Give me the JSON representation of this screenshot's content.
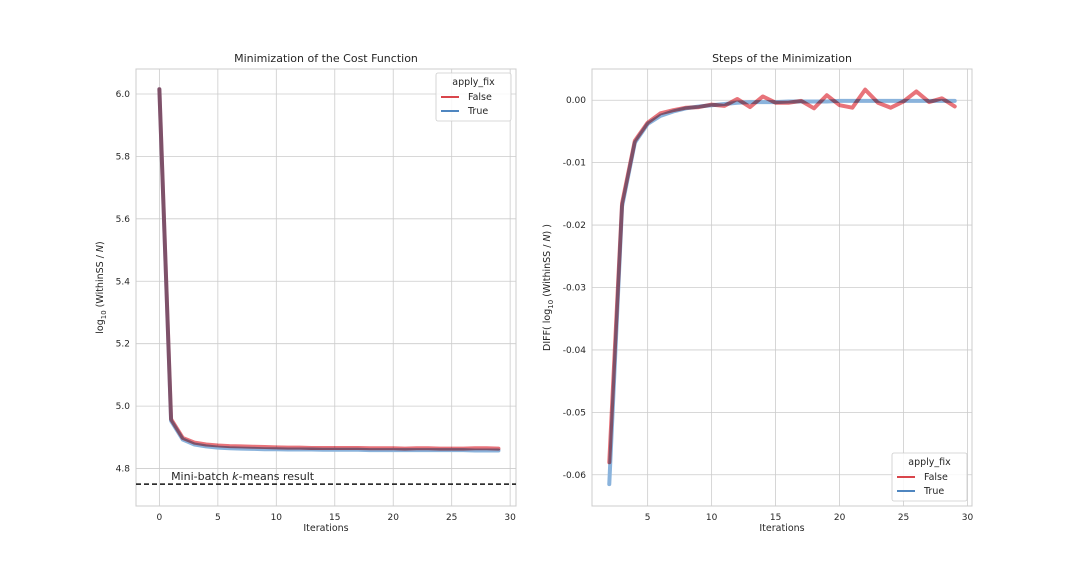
{
  "chart_data": [
    {
      "type": "line",
      "title": "Minimization of the Cost Function",
      "xlabel": "Iterations",
      "ylabel_parts": {
        "pre": "log",
        "sub": "10",
        "post": " (WithinSS / ",
        "italic": "N",
        "end": ")"
      },
      "xlim": [
        -2,
        30.5
      ],
      "ylim": [
        4.68,
        6.08
      ],
      "xticks": [
        0,
        5,
        10,
        15,
        20,
        25,
        30
      ],
      "yticks": [
        4.8,
        5.0,
        5.2,
        5.4,
        5.6,
        5.8,
        6.0
      ],
      "ytick_labels": [
        "4.8",
        "5.0",
        "5.2",
        "5.4",
        "5.6",
        "5.8",
        "6.0"
      ],
      "grid": true,
      "legend": {
        "title": "apply_fix",
        "position": "top-right"
      },
      "hline": {
        "y": 4.75,
        "style": "dashed"
      },
      "annotation": {
        "text_pre": "Mini-batch ",
        "text_italic": "k",
        "text_post": "-means result"
      },
      "x": [
        0,
        1,
        2,
        3,
        4,
        5,
        6,
        7,
        8,
        9,
        10,
        11,
        12,
        13,
        14,
        15,
        16,
        17,
        18,
        19,
        20,
        21,
        22,
        23,
        24,
        25,
        26,
        27,
        28,
        29
      ],
      "series": [
        {
          "name": "False",
          "color": "#e8737a",
          "values": [
            6.015,
            4.958,
            4.898,
            4.883,
            4.877,
            4.874,
            4.872,
            4.871,
            4.87,
            4.869,
            4.868,
            4.867,
            4.867,
            4.866,
            4.866,
            4.866,
            4.866,
            4.866,
            4.865,
            4.865,
            4.865,
            4.864,
            4.865,
            4.865,
            4.864,
            4.864,
            4.864,
            4.865,
            4.865,
            4.864
          ]
        },
        {
          "name": "True",
          "color": "#8ab3dc",
          "values": [
            6.015,
            4.953,
            4.893,
            4.877,
            4.871,
            4.867,
            4.865,
            4.864,
            4.863,
            4.862,
            4.862,
            4.861,
            4.861,
            4.861,
            4.86,
            4.86,
            4.86,
            4.86,
            4.859,
            4.859,
            4.859,
            4.859,
            4.859,
            4.859,
            4.859,
            4.859,
            4.859,
            4.858,
            4.858,
            4.858
          ]
        }
      ]
    },
    {
      "type": "line",
      "title": "Steps of the Minimization",
      "xlabel": "Iterations",
      "ylabel_parts": {
        "pre": "DIFF( log",
        "sub": "10",
        "post": " (WithinSS / ",
        "italic": "N",
        "end": ") )"
      },
      "xlim": [
        0.65,
        30.35
      ],
      "ylim": [
        -0.065,
        0.005
      ],
      "xticks": [
        5,
        10,
        15,
        20,
        25,
        30
      ],
      "yticks": [
        -0.06,
        -0.05,
        -0.04,
        -0.03,
        -0.02,
        -0.01,
        0.0
      ],
      "ytick_labels": [
        "-0.06",
        "-0.05",
        "-0.04",
        "-0.03",
        "-0.02",
        "-0.01",
        "0.00"
      ],
      "grid": true,
      "legend": {
        "title": "apply_fix",
        "position": "bottom-right"
      },
      "x": [
        2,
        3,
        4,
        5,
        6,
        7,
        8,
        9,
        10,
        11,
        12,
        13,
        14,
        15,
        16,
        17,
        18,
        19,
        20,
        21,
        22,
        23,
        24,
        25,
        26,
        27,
        28,
        29
      ],
      "series": [
        {
          "name": "False",
          "color": "#e8737a",
          "values": [
            -0.058,
            -0.0165,
            -0.0065,
            -0.0036,
            -0.0021,
            -0.0016,
            -0.0012,
            -0.0011,
            -0.0007,
            -0.0009,
            0.0002,
            -0.0011,
            0.0006,
            -0.0004,
            -0.0004,
            -0.0001,
            -0.0013,
            0.0008,
            -0.0008,
            -0.0012,
            0.0017,
            -0.0004,
            -0.0012,
            -0.0002,
            0.0014,
            -0.0003,
            0.0003,
            -0.001
          ]
        },
        {
          "name": "True",
          "color": "#8ab3dc",
          "values": [
            -0.0615,
            -0.017,
            -0.0068,
            -0.0038,
            -0.0025,
            -0.0018,
            -0.0013,
            -0.001,
            -0.0008,
            -0.0006,
            -0.0004,
            -0.0003,
            -0.0003,
            -0.0003,
            -0.0002,
            -0.0002,
            -0.0002,
            -0.0002,
            -0.0001,
            -0.0001,
            -0.0001,
            -0.0001,
            -0.0001,
            -0.0001,
            -0.0001,
            -0.0001,
            -0.0001,
            -0.0001
          ]
        }
      ]
    }
  ],
  "legend_line_colors": {
    "False": "#d9454b",
    "True": "#4f86c0"
  },
  "styles": {
    "grid_color": "#cccccc",
    "axis_color": "#cccccc",
    "text_color": "#262626"
  }
}
